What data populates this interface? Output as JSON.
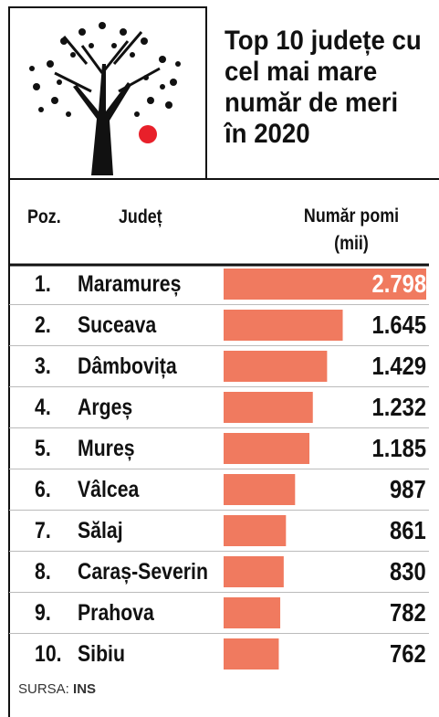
{
  "chart_data": {
    "type": "bar",
    "title": "Top 10 județe cu cel mai mare număr de meri în 2020",
    "header": {
      "rank": "Poz.",
      "category": "Județ",
      "value": "Număr pomi (mii)"
    },
    "ranks": [
      "1.",
      "2.",
      "3.",
      "4.",
      "5.",
      "6.",
      "7.",
      "8.",
      "9.",
      "10."
    ],
    "categories": [
      "Maramureș",
      "Suceava",
      "Dâmbovița",
      "Argeș",
      "Mureș",
      "Vâlcea",
      "Sălaj",
      "Caraș-Severin",
      "Prahova",
      "Sibiu"
    ],
    "values": [
      2798,
      1645,
      1429,
      1232,
      1185,
      987,
      861,
      830,
      782,
      762
    ],
    "value_labels": [
      "2.798",
      "1.645",
      "1.429",
      "1.232",
      "1.185",
      "987",
      "861",
      "830",
      "782",
      "762"
    ],
    "color": "#f07a5f",
    "source": {
      "label": "SURSA:",
      "name": "INS"
    }
  }
}
